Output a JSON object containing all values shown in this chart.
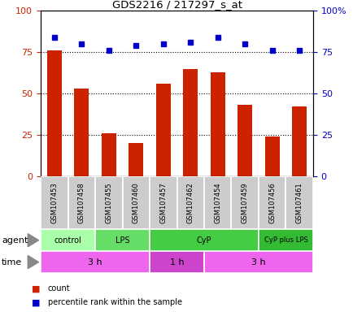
{
  "title": "GDS2216 / 217297_s_at",
  "samples": [
    "GSM107453",
    "GSM107458",
    "GSM107455",
    "GSM107460",
    "GSM107457",
    "GSM107462",
    "GSM107454",
    "GSM107459",
    "GSM107456",
    "GSM107461"
  ],
  "counts": [
    76,
    53,
    26,
    20,
    56,
    65,
    63,
    43,
    24,
    42
  ],
  "percentile_ranks": [
    84,
    80,
    76,
    79,
    80,
    81,
    84,
    80,
    76,
    76
  ],
  "bar_color": "#cc2200",
  "dot_color": "#0000cc",
  "agent_groups": [
    {
      "label": "control",
      "span": [
        0,
        2
      ],
      "color": "#aaffaa"
    },
    {
      "label": "LPS",
      "span": [
        2,
        4
      ],
      "color": "#66dd66"
    },
    {
      "label": "CyP",
      "span": [
        4,
        8
      ],
      "color": "#44cc44"
    },
    {
      "label": "CyP plus LPS",
      "span": [
        8,
        10
      ],
      "color": "#33bb33"
    }
  ],
  "time_groups": [
    {
      "label": "3 h",
      "span": [
        0,
        4
      ],
      "color": "#ee66ee"
    },
    {
      "label": "1 h",
      "span": [
        4,
        6
      ],
      "color": "#cc44cc"
    },
    {
      "label": "3 h",
      "span": [
        6,
        10
      ],
      "color": "#ee66ee"
    }
  ],
  "ylim_left": [
    0,
    100
  ],
  "ylim_right": [
    0,
    100
  ],
  "yticks_left": [
    0,
    25,
    50,
    75,
    100
  ],
  "yticks_right": [
    0,
    25,
    50,
    75,
    100
  ],
  "ytick_right_labels": [
    "0",
    "25",
    "50",
    "75",
    "100%"
  ],
  "grid_values": [
    25,
    50,
    75
  ],
  "legend_items": [
    {
      "label": "count",
      "color": "#cc2200"
    },
    {
      "label": "percentile rank within the sample",
      "color": "#0000cc"
    }
  ],
  "left_yaxis_color": "#cc2200",
  "right_yaxis_color": "#0000cc",
  "agent_label": "agent",
  "time_label": "time",
  "sample_box_color": "#cccccc",
  "bar_width": 0.55
}
